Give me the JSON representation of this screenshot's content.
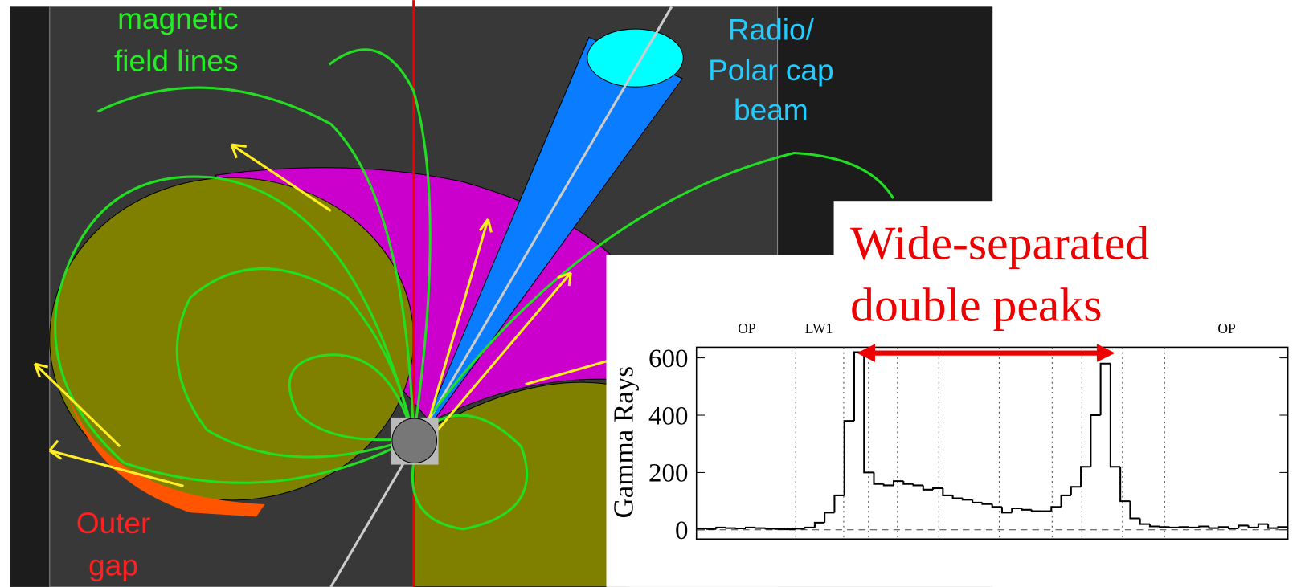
{
  "diagram": {
    "field_label": [
      "magnetic",
      "field lines"
    ],
    "beam_label": [
      "Radio/",
      "Polar cap",
      "beam"
    ],
    "gap_label": [
      "Outer",
      "gap"
    ],
    "callout": [
      "Wide-separated",
      "double peaks"
    ]
  },
  "chart_data": {
    "type": "histogram",
    "ylabel": "Gamma Rays",
    "phase_labels": [
      "OP",
      "LW1",
      "OP"
    ],
    "bins": [
      0,
      1,
      2,
      3,
      4,
      5,
      6,
      7,
      8,
      9,
      10,
      11,
      12,
      13,
      14,
      15,
      16,
      17,
      18,
      19,
      20,
      21,
      22,
      23,
      24,
      25,
      26,
      27,
      28,
      29,
      30,
      31,
      32,
      33,
      34,
      35,
      36,
      37,
      38,
      39,
      40,
      41,
      42,
      43,
      44,
      45,
      46,
      47,
      48,
      49,
      50,
      51,
      52,
      53,
      54,
      55,
      56,
      57,
      58,
      59,
      60
    ],
    "values": [
      5,
      3,
      8,
      6,
      5,
      8,
      6,
      4,
      3,
      2,
      4,
      8,
      25,
      60,
      120,
      380,
      620,
      200,
      160,
      155,
      170,
      160,
      155,
      140,
      145,
      120,
      110,
      105,
      95,
      90,
      80,
      60,
      75,
      70,
      65,
      65,
      80,
      120,
      150,
      220,
      400,
      580,
      220,
      100,
      40,
      20,
      12,
      10,
      8,
      10,
      8,
      12,
      6,
      10,
      5,
      15,
      8,
      20,
      6,
      10
    ],
    "color": "#000000",
    "xlim": [
      0,
      60
    ],
    "ylim": [
      -32,
      637
    ],
    "yticks": [
      0,
      200,
      400,
      600
    ]
  }
}
